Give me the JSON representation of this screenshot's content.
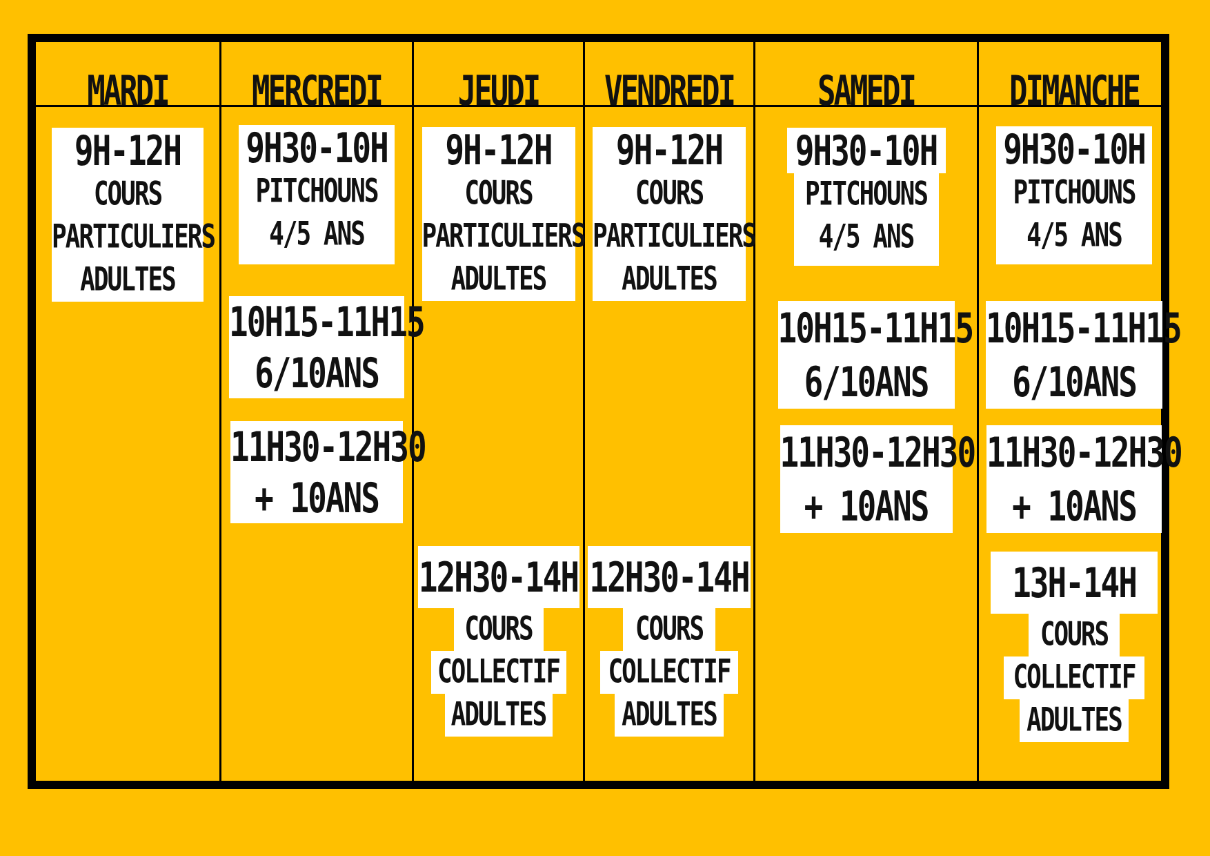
{
  "days": [
    {
      "name": "MARDI",
      "slots": [
        {
          "time": "9H-12H",
          "lines": [
            "COURS",
            "PARTICULIERS",
            "ADULTES"
          ]
        }
      ]
    },
    {
      "name": "MERCREDI",
      "slots": [
        {
          "time": "9H30-10H",
          "lines": [
            "PITCHOUNS",
            "4/5 ANS"
          ]
        },
        {
          "time": "10H15-11H15",
          "lines": [
            "6/10ANS"
          ]
        },
        {
          "time": "11H30-12H30",
          "lines": [
            "+ 10ANS"
          ]
        }
      ]
    },
    {
      "name": "JEUDI",
      "slots": [
        {
          "time": "9H-12H",
          "lines": [
            "COURS",
            "PARTICULIERS",
            "ADULTES"
          ]
        },
        {
          "time": "12H30-14H",
          "lines": [
            "COURS",
            "COLLECTIF",
            "ADULTES"
          ]
        }
      ]
    },
    {
      "name": "VENDREDI",
      "slots": [
        {
          "time": "9H-12H",
          "lines": [
            "COURS",
            "PARTICULIERS",
            "ADULTES"
          ]
        },
        {
          "time": "12H30-14H",
          "lines": [
            "COURS",
            "COLLECTIF",
            "ADULTES"
          ]
        }
      ]
    },
    {
      "name": "SAMEDI",
      "slots": [
        {
          "time": "9H30-10H",
          "lines": [
            "PITCHOUNS",
            "4/5 ANS"
          ]
        },
        {
          "time": "10H15-11H15",
          "lines": [
            "6/10ANS"
          ]
        },
        {
          "time": "11H30-12H30",
          "lines": [
            "+ 10ANS"
          ]
        }
      ]
    },
    {
      "name": "DIMANCHE",
      "slots": [
        {
          "time": "9H30-10H",
          "lines": [
            "PITCHOUNS",
            "4/5 ANS"
          ]
        },
        {
          "time": "10H15-11H15",
          "lines": [
            "6/10ANS"
          ]
        },
        {
          "time": "11H30-12H30",
          "lines": [
            "+ 10ANS"
          ]
        },
        {
          "time": "13H-14H",
          "lines": [
            "COURS",
            "COLLECTIF",
            "ADULTES"
          ]
        }
      ]
    }
  ],
  "colors": {
    "background": "#FFC000",
    "border": "#000000",
    "card": "#FFFFFF",
    "text": "#111111"
  }
}
